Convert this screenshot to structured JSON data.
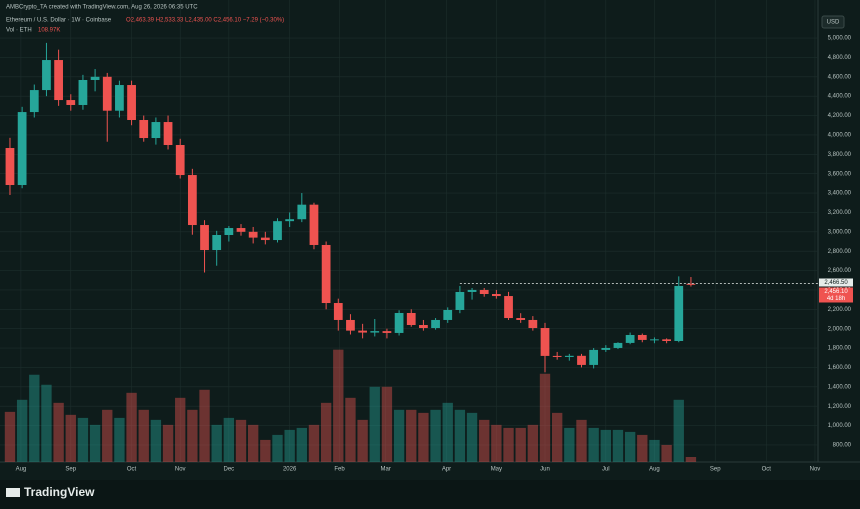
{
  "chart_data": {
    "type": "candlestick",
    "creator": "AMBCrypto_TA created with TradingView.com, Aug 26, 2026 06:35 UTC",
    "symbol": "Ethereum / U.S. Dollar · 1W · Coinbase",
    "ohlc_header": "O2,463.39 H2,533.33 L2,435.00 C2,456.10 −7.29 (−0.30%)",
    "volume_header": "Vol · ETH",
    "volume_value_label": "108.97K",
    "currency": "USD",
    "brand": "TradingView",
    "up_color": "#26a69a",
    "down_color": "#ef5350",
    "grid": true,
    "xlim": [
      -0.82,
      66.45
    ],
    "ylim": [
      624,
      5083
    ],
    "volume_lim": [
      0,
      3000000
    ],
    "xlabels": [
      {
        "value": 0.9,
        "label": "Aug"
      },
      {
        "value": 5,
        "label": "Sep"
      },
      {
        "value": 10,
        "label": "Oct"
      },
      {
        "value": 14,
        "label": "Nov"
      },
      {
        "value": 18,
        "label": "Dec"
      },
      {
        "value": 23,
        "label": "2026"
      },
      {
        "value": 27.1,
        "label": "Feb"
      },
      {
        "value": 30.9,
        "label": "Mar"
      },
      {
        "value": 35.9,
        "label": "Apr"
      },
      {
        "value": 40,
        "label": "May"
      },
      {
        "value": 44,
        "label": "Jun"
      },
      {
        "value": 49,
        "label": "Jul"
      },
      {
        "value": 53,
        "label": "Aug"
      },
      {
        "value": 58,
        "label": "Sep"
      },
      {
        "value": 62.2,
        "label": "Oct"
      },
      {
        "value": 66.2,
        "label": "Nov"
      }
    ],
    "yticks": [
      {
        "value": 800,
        "label": "800.00"
      },
      {
        "value": 1000,
        "label": "1,000.00"
      },
      {
        "value": 1200,
        "label": "1,200.00"
      },
      {
        "value": 1400,
        "label": "1,400.00"
      },
      {
        "value": 1600,
        "label": "1,600.00"
      },
      {
        "value": 1800,
        "label": "1,800.00"
      },
      {
        "value": 2000,
        "label": "2,000.00"
      },
      {
        "value": 2200,
        "label": "2,200.00"
      },
      {
        "value": 2400,
        "label": "2,400.00"
      },
      {
        "value": 2600,
        "label": "2,600.00"
      },
      {
        "value": 2800,
        "label": "2,800.00"
      },
      {
        "value": 3000,
        "label": "3,000.00"
      },
      {
        "value": 3200,
        "label": "3,200.00"
      },
      {
        "value": 3400,
        "label": "3,400.00"
      },
      {
        "value": 3600,
        "label": "3,600.00"
      },
      {
        "value": 3800,
        "label": "3,800.00"
      },
      {
        "value": 4000,
        "label": "4,000.00"
      },
      {
        "value": 4200,
        "label": "4,200.00"
      },
      {
        "value": 4400,
        "label": "4,400.00"
      },
      {
        "value": 4600,
        "label": "4,600.00"
      },
      {
        "value": 4800,
        "label": "4,800.00"
      },
      {
        "value": 5000,
        "label": "5,000.00"
      }
    ],
    "price_line": {
      "value": 2466.5,
      "label": "2,466.50",
      "start": 37
    },
    "last_label": "2,456.10",
    "countdown": "4d 18h",
    "ohlc": [
      [
        3865,
        3970,
        3380,
        3483
      ],
      [
        3483,
        4290,
        3450,
        4236
      ],
      [
        4236,
        4520,
        4180,
        4463
      ],
      [
        4463,
        4950,
        4400,
        4773
      ],
      [
        4773,
        4880,
        4300,
        4360
      ],
      [
        4360,
        4420,
        4250,
        4309
      ],
      [
        4309,
        4620,
        4260,
        4567
      ],
      [
        4567,
        4680,
        4450,
        4600
      ],
      [
        4600,
        4640,
        3930,
        4250
      ],
      [
        4250,
        4560,
        4180,
        4515
      ],
      [
        4515,
        4560,
        4100,
        4154
      ],
      [
        4154,
        4200,
        3930,
        3968
      ],
      [
        3968,
        4180,
        3900,
        4133
      ],
      [
        4133,
        4200,
        3850,
        3896
      ],
      [
        3896,
        3960,
        3550,
        3586
      ],
      [
        3586,
        3650,
        2970,
        3070
      ],
      [
        3070,
        3120,
        2580,
        2812
      ],
      [
        2812,
        3010,
        2650,
        2967
      ],
      [
        2967,
        3060,
        2900,
        3039
      ],
      [
        3039,
        3080,
        2960,
        3000
      ],
      [
        3000,
        3050,
        2880,
        2940
      ],
      [
        2940,
        3000,
        2870,
        2915
      ],
      [
        2915,
        3140,
        2890,
        3110
      ],
      [
        3110,
        3200,
        3050,
        3130
      ],
      [
        3130,
        3400,
        3100,
        3280
      ],
      [
        3280,
        3300,
        2820,
        2864
      ],
      [
        2864,
        2900,
        2200,
        2265
      ],
      [
        2265,
        2310,
        1980,
        2090
      ],
      [
        2090,
        2150,
        1940,
        1980
      ],
      [
        1980,
        2050,
        1900,
        1960
      ],
      [
        1960,
        2100,
        1920,
        1975
      ],
      [
        1975,
        2000,
        1900,
        1956
      ],
      [
        1956,
        2190,
        1930,
        2162
      ],
      [
        2162,
        2200,
        2020,
        2038
      ],
      [
        2038,
        2090,
        1980,
        2007
      ],
      [
        2007,
        2110,
        1990,
        2090
      ],
      [
        2090,
        2220,
        2060,
        2193
      ],
      [
        2193,
        2441,
        2160,
        2379
      ],
      [
        2379,
        2420,
        2300,
        2400
      ],
      [
        2400,
        2420,
        2330,
        2358
      ],
      [
        2358,
        2400,
        2310,
        2337
      ],
      [
        2337,
        2380,
        2090,
        2110
      ],
      [
        2110,
        2160,
        2060,
        2090
      ],
      [
        2090,
        2130,
        1980,
        2007
      ],
      [
        2007,
        2060,
        1550,
        1719
      ],
      [
        1719,
        1760,
        1680,
        1708
      ],
      [
        1708,
        1740,
        1670,
        1720
      ],
      [
        1720,
        1740,
        1600,
        1626
      ],
      [
        1626,
        1800,
        1590,
        1781
      ],
      [
        1781,
        1830,
        1760,
        1801
      ],
      [
        1801,
        1860,
        1790,
        1853
      ],
      [
        1853,
        1960,
        1840,
        1935
      ],
      [
        1935,
        1950,
        1860,
        1884
      ],
      [
        1884,
        1910,
        1850,
        1890
      ],
      [
        1890,
        1900,
        1850,
        1873
      ],
      [
        1873,
        2540,
        1860,
        2441
      ],
      [
        2463.39,
        2533.33,
        2435,
        2456.1
      ]
    ],
    "volume": [
      1090000,
      1352000,
      1897000,
      1679000,
      1286000,
      1025000,
      959000,
      807000,
      1134000,
      959000,
      1504000,
      1134000,
      916000,
      807000,
      1395000,
      1134000,
      1570000,
      807000,
      959000,
      916000,
      807000,
      480000,
      589000,
      698000,
      741000,
      807000,
      1286000,
      2442000,
      1395000,
      916000,
      1635000,
      1635000,
      1134000,
      1134000,
      1068000,
      1134000,
      1286000,
      1134000,
      1068000,
      916000,
      807000,
      741000,
      741000,
      807000,
      1918000,
      1068000,
      741000,
      916000,
      741000,
      698000,
      698000,
      654000,
      589000,
      480000,
      371000,
      1352000,
      108970
    ]
  }
}
